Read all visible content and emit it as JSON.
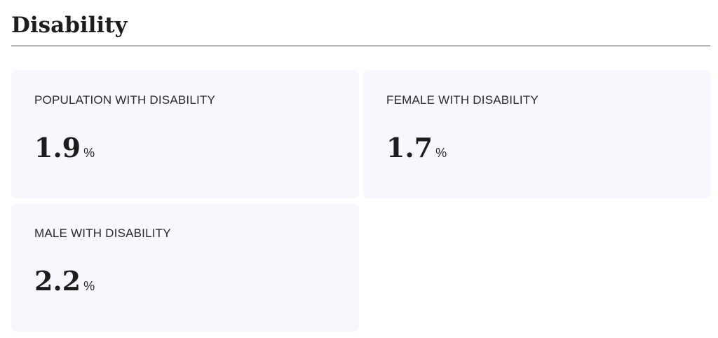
{
  "header": {
    "title": "Disability"
  },
  "cards": [
    {
      "label": "POPULATION WITH DISABILITY",
      "value": 1.9,
      "unit": "%"
    },
    {
      "label": "FEMALE WITH DISABILITY",
      "value": 1.7,
      "unit": "%"
    },
    {
      "label": "MALE WITH DISABILITY",
      "value": 2.2,
      "unit": "%"
    }
  ]
}
